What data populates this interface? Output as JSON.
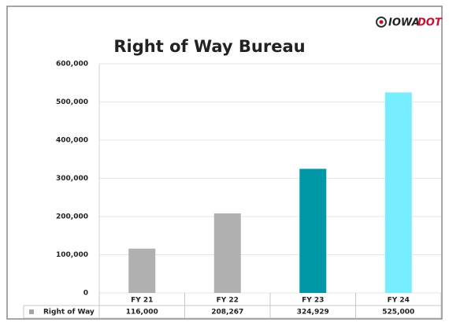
{
  "logo": {
    "name": "IOWA",
    "accent": "DOT"
  },
  "chart_data": {
    "type": "bar",
    "title": "Right of Way Bureau",
    "categories": [
      "FY 21",
      "FY 22",
      "FY 23",
      "FY 24"
    ],
    "series": [
      {
        "name": "Right of Way",
        "color": "#a6a6a6",
        "colors": [
          "#b0b0b0",
          "#b0b0b0",
          "#0097a7",
          "#77eeff"
        ],
        "values": [
          116000,
          208267,
          324929,
          525000
        ],
        "value_labels": [
          "116,000",
          "208,267",
          "324,929",
          "525,000"
        ]
      }
    ],
    "ylim": [
      0,
      600000
    ],
    "yticks": [
      0,
      {
        "value": 100000,
        "label": "100,000"
      },
      {
        "value": 200000,
        "label": "200,000"
      },
      {
        "value": 300000,
        "label": "300,000"
      },
      {
        "value": 400000,
        "label": "400,000"
      },
      {
        "value": 500000,
        "label": "500,000"
      },
      {
        "value": 600000,
        "label": "600,000"
      }
    ],
    "grid": true
  }
}
